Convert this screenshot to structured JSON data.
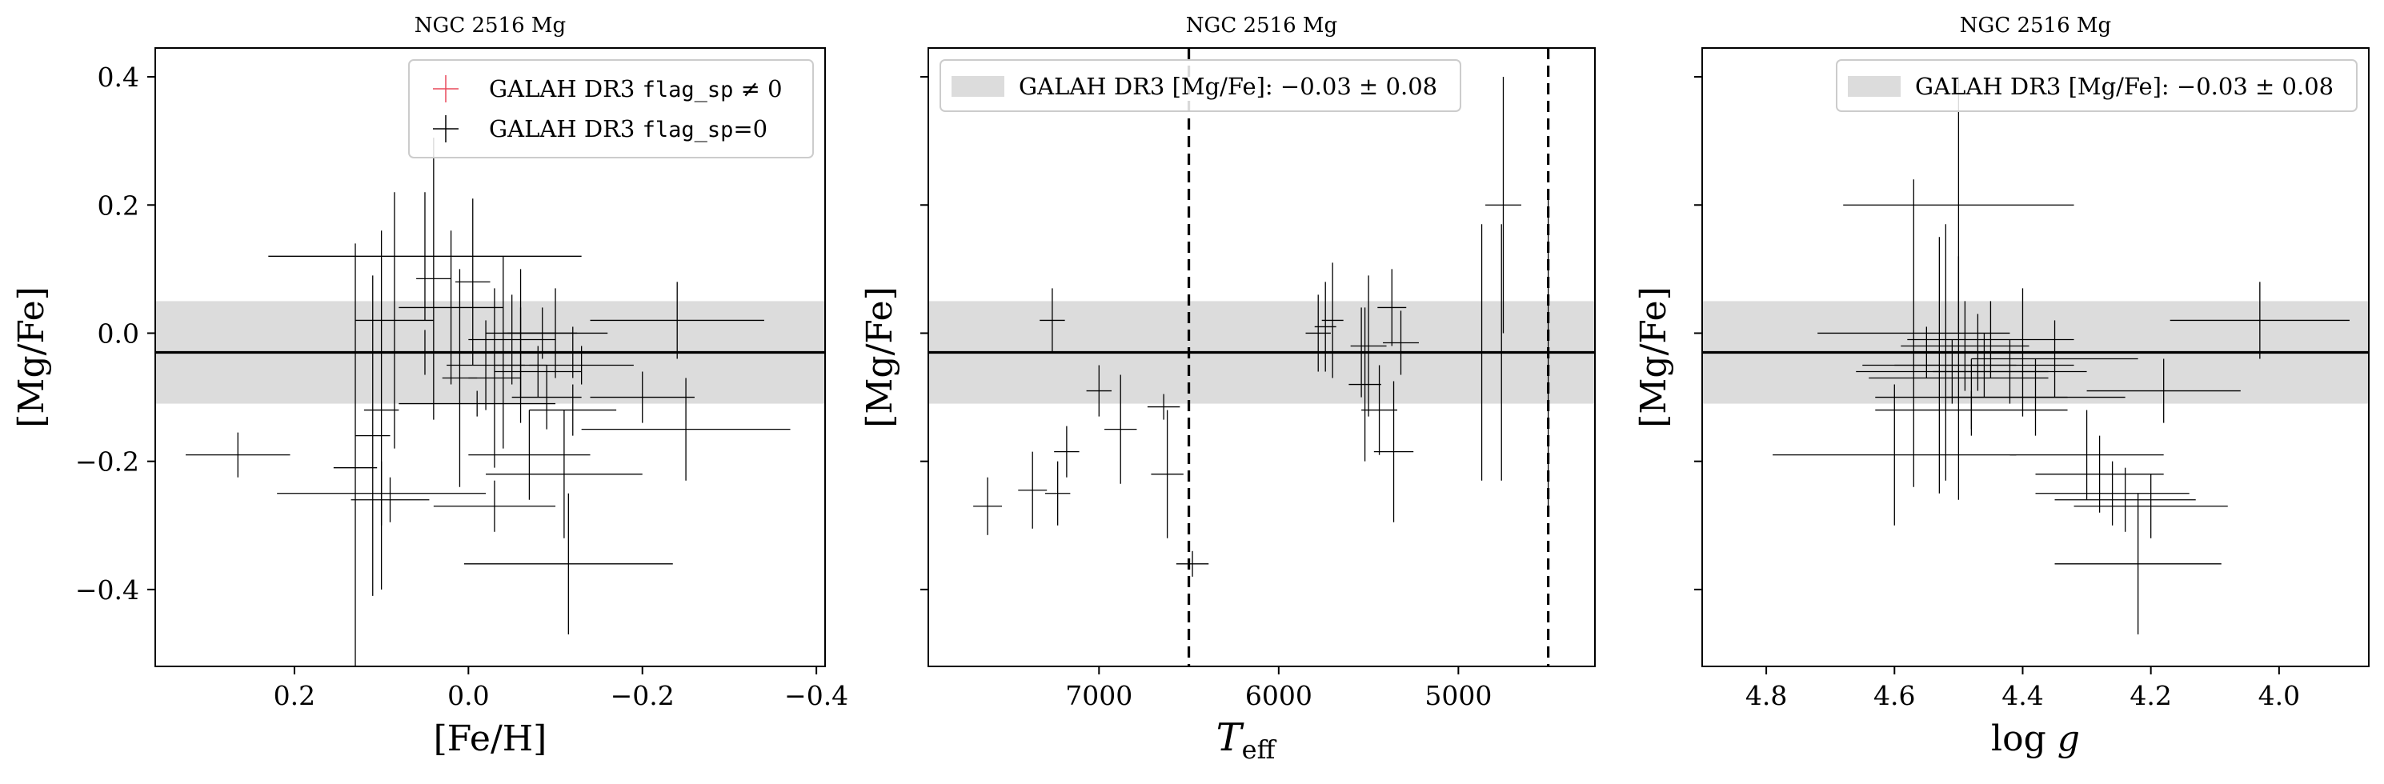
{
  "figure": {
    "shared_ylabel": "[Mg/Fe]",
    "band_color": "#dcdcdc",
    "line_color": "#000000",
    "errorbar_color": "#000000",
    "flag_color": "#e8495a"
  },
  "chart_data": [
    {
      "type": "scatter",
      "title": "NGC 2516 Mg",
      "xlabel": "[Fe/H]",
      "ylabel": "[Mg/Fe]",
      "xlim": [
        0.36,
        -0.41
      ],
      "ylim": [
        -0.52,
        0.445
      ],
      "xticks": [
        {
          "v": 0.2,
          "label": "0.2"
        },
        {
          "v": 0.0,
          "label": "0.0"
        },
        {
          "v": -0.2,
          "label": "−0.2"
        },
        {
          "v": -0.4,
          "label": "−0.4"
        }
      ],
      "yticks": [
        {
          "v": 0.4,
          "label": "0.4"
        },
        {
          "v": 0.2,
          "label": "0.2"
        },
        {
          "v": 0.0,
          "label": "0.0"
        },
        {
          "v": -0.2,
          "label": "−0.2"
        },
        {
          "v": -0.4,
          "label": "−0.4"
        }
      ],
      "show_ytick_labels": true,
      "band": [
        -0.11,
        0.05
      ],
      "hline": -0.03,
      "vlines": [],
      "legend": {
        "placement": "top-right",
        "entries": [
          {
            "marker": "cross-red",
            "prefix": "GALAH DR3 ",
            "mono": "flag_sp",
            "suffix": " ≠ 0"
          },
          {
            "marker": "cross-black",
            "prefix": "GALAH DR3 ",
            "mono": "flag_sp",
            "suffix": "=0"
          }
        ]
      },
      "series": [
        {
          "name": "GALAH DR3 flag_sp=0",
          "points": [
            {
              "x": 0.265,
              "y": -0.19,
              "xerr": 0.06,
              "yerr": 0.035
            },
            {
              "x": 0.1,
              "y": -0.25,
              "xerr": 0.12,
              "yerr": 0.05
            },
            {
              "x": 0.13,
              "y": -0.21,
              "xerr": 0.025,
              "yerr": 0.35
            },
            {
              "x": 0.09,
              "y": -0.26,
              "xerr": 0.045,
              "yerr": 0.035
            },
            {
              "x": 0.11,
              "y": -0.16,
              "xerr": 0.02,
              "yerr": 0.25
            },
            {
              "x": 0.1,
              "y": -0.12,
              "xerr": 0.02,
              "yerr": 0.28
            },
            {
              "x": 0.085,
              "y": 0.02,
              "xerr": 0.045,
              "yerr": 0.2
            },
            {
              "x": 0.05,
              "y": 0.12,
              "xerr": 0.18,
              "yerr": 0.1
            },
            {
              "x": 0.05,
              "y": -0.03,
              "xerr": 0.24,
              "yerr": 0.035
            },
            {
              "x": 0.04,
              "y": 0.085,
              "xerr": 0.02,
              "yerr": 0.22
            },
            {
              "x": 0.02,
              "y": 0.04,
              "xerr": 0.06,
              "yerr": 0.12
            },
            {
              "x": 0.01,
              "y": -0.07,
              "xerr": 0.02,
              "yerr": 0.17
            },
            {
              "x": -0.005,
              "y": 0.08,
              "xerr": 0.02,
              "yerr": 0.13
            },
            {
              "x": -0.01,
              "y": -0.11,
              "xerr": 0.09,
              "yerr": 0.02
            },
            {
              "x": -0.02,
              "y": -0.05,
              "xerr": 0.045,
              "yerr": 0.07
            },
            {
              "x": -0.03,
              "y": -0.07,
              "xerr": 0.03,
              "yerr": 0.14
            },
            {
              "x": -0.03,
              "y": -0.27,
              "xerr": 0.07,
              "yerr": 0.04
            },
            {
              "x": -0.04,
              "y": -0.03,
              "xerr": 0.02,
              "yerr": 0.15
            },
            {
              "x": -0.05,
              "y": -0.01,
              "xerr": 0.05,
              "yerr": 0.07
            },
            {
              "x": -0.06,
              "y": 0.0,
              "xerr": 0.04,
              "yerr": 0.1
            },
            {
              "x": -0.06,
              "y": -0.05,
              "xerr": 0.03,
              "yerr": 0.09
            },
            {
              "x": -0.07,
              "y": -0.19,
              "xerr": 0.07,
              "yerr": 0.07
            },
            {
              "x": -0.08,
              "y": -0.06,
              "xerr": 0.05,
              "yerr": 0.04
            },
            {
              "x": -0.085,
              "y": 0.0,
              "xerr": 0.04,
              "yerr": 0.04
            },
            {
              "x": -0.09,
              "y": -0.1,
              "xerr": 0.04,
              "yerr": 0.05
            },
            {
              "x": -0.1,
              "y": 0.0,
              "xerr": 0.06,
              "yerr": 0.07
            },
            {
              "x": -0.11,
              "y": -0.22,
              "xerr": 0.09,
              "yerr": 0.1
            },
            {
              "x": -0.115,
              "y": -0.36,
              "xerr": 0.12,
              "yerr": 0.11
            },
            {
              "x": -0.12,
              "y": -0.03,
              "xerr": 0.1,
              "yerr": 0.04
            },
            {
              "x": -0.12,
              "y": -0.12,
              "xerr": 0.05,
              "yerr": 0.04
            },
            {
              "x": -0.13,
              "y": -0.05,
              "xerr": 0.06,
              "yerr": 0.03
            },
            {
              "x": -0.2,
              "y": -0.1,
              "xerr": 0.06,
              "yerr": 0.04
            },
            {
              "x": -0.24,
              "y": 0.02,
              "xerr": 0.1,
              "yerr": 0.06
            },
            {
              "x": -0.25,
              "y": -0.15,
              "xerr": 0.12,
              "yerr": 0.08
            }
          ]
        }
      ]
    },
    {
      "type": "scatter",
      "title": "NGC 2516 Mg",
      "xlabel": "T_eff",
      "ylabel": "[Mg/Fe]",
      "xlim": [
        7950,
        4240
      ],
      "ylim": [
        -0.52,
        0.445
      ],
      "xticks": [
        {
          "v": 7000,
          "label": "7000"
        },
        {
          "v": 6000,
          "label": "6000"
        },
        {
          "v": 5000,
          "label": "5000"
        }
      ],
      "yticks": [
        {
          "v": 0.4,
          "label": "0.4"
        },
        {
          "v": 0.2,
          "label": "0.2"
        },
        {
          "v": 0.0,
          "label": "0.0"
        },
        {
          "v": -0.2,
          "label": "−0.2"
        },
        {
          "v": -0.4,
          "label": "−0.4"
        }
      ],
      "show_ytick_labels": false,
      "band": [
        -0.11,
        0.05
      ],
      "hline": -0.03,
      "vlines": [
        6500,
        4500
      ],
      "legend": {
        "placement": "top-left",
        "entries": [
          {
            "marker": "band",
            "text": "GALAH DR3 [Mg/Fe]: −0.03 ± 0.08"
          }
        ]
      },
      "series": [
        {
          "name": "",
          "points": [
            {
              "x": 7620,
              "y": -0.27,
              "xerr": 80,
              "yerr": 0.045
            },
            {
              "x": 7370,
              "y": -0.245,
              "xerr": 80,
              "yerr": 0.06
            },
            {
              "x": 7260,
              "y": 0.02,
              "xerr": 70,
              "yerr": 0.05
            },
            {
              "x": 7230,
              "y": -0.25,
              "xerr": 70,
              "yerr": 0.05
            },
            {
              "x": 7180,
              "y": -0.185,
              "xerr": 70,
              "yerr": 0.04
            },
            {
              "x": 7000,
              "y": -0.09,
              "xerr": 70,
              "yerr": 0.04
            },
            {
              "x": 6880,
              "y": -0.15,
              "xerr": 90,
              "yerr": 0.085
            },
            {
              "x": 6640,
              "y": -0.115,
              "xerr": 90,
              "yerr": 0.02
            },
            {
              "x": 6620,
              "y": -0.22,
              "xerr": 90,
              "yerr": 0.1
            },
            {
              "x": 6480,
              "y": -0.36,
              "xerr": 90,
              "yerr": 0.02
            },
            {
              "x": 5780,
              "y": 0.0,
              "xerr": 70,
              "yerr": 0.06
            },
            {
              "x": 5740,
              "y": 0.01,
              "xerr": 60,
              "yerr": 0.07
            },
            {
              "x": 5700,
              "y": 0.02,
              "xerr": 60,
              "yerr": 0.09
            },
            {
              "x": 5540,
              "y": -0.03,
              "xerr": 80,
              "yerr": 0.07
            },
            {
              "x": 5520,
              "y": -0.08,
              "xerr": 90,
              "yerr": 0.12
            },
            {
              "x": 5500,
              "y": -0.02,
              "xerr": 100,
              "yerr": 0.11
            },
            {
              "x": 5440,
              "y": -0.12,
              "xerr": 100,
              "yerr": 0.07
            },
            {
              "x": 5370,
              "y": 0.04,
              "xerr": 80,
              "yerr": 0.06
            },
            {
              "x": 5360,
              "y": -0.185,
              "xerr": 110,
              "yerr": 0.11
            },
            {
              "x": 5320,
              "y": -0.015,
              "xerr": 100,
              "yerr": 0.05
            },
            {
              "x": 4870,
              "y": -0.03,
              "xerr": 100,
              "yerr": 0.2
            },
            {
              "x": 4760,
              "y": -0.03,
              "xerr": 200,
              "yerr": 0.2
            },
            {
              "x": 4750,
              "y": 0.2,
              "xerr": 100,
              "yerr": 0.2
            },
            {
              "x": 4500,
              "y": -0.03,
              "xerr": 60,
              "yerr": 0.24
            }
          ]
        }
      ]
    },
    {
      "type": "scatter",
      "title": "NGC 2516 Mg",
      "xlabel": "log g",
      "ylabel": "[Mg/Fe]",
      "xlim": [
        4.9,
        3.86
      ],
      "ylim": [
        -0.52,
        0.445
      ],
      "xticks": [
        {
          "v": 4.8,
          "label": "4.8"
        },
        {
          "v": 4.6,
          "label": "4.6"
        },
        {
          "v": 4.4,
          "label": "4.4"
        },
        {
          "v": 4.2,
          "label": "4.2"
        },
        {
          "v": 4.0,
          "label": "4.0"
        }
      ],
      "yticks": [
        {
          "v": 0.4,
          "label": "0.4"
        },
        {
          "v": 0.2,
          "label": "0.2"
        },
        {
          "v": 0.0,
          "label": "0.0"
        },
        {
          "v": -0.2,
          "label": "−0.2"
        },
        {
          "v": -0.4,
          "label": "−0.4"
        }
      ],
      "show_ytick_labels": false,
      "band": [
        -0.11,
        0.05
      ],
      "hline": -0.03,
      "vlines": [],
      "legend": {
        "placement": "top-right",
        "entries": [
          {
            "marker": "band",
            "text": "GALAH DR3 [Mg/Fe]: −0.03 ± 0.08"
          }
        ]
      },
      "series": [
        {
          "name": "",
          "points": [
            {
              "x": 4.6,
              "y": -0.19,
              "xerr": 0.19,
              "yerr": 0.11
            },
            {
              "x": 4.57,
              "y": 0.0,
              "xerr": 0.15,
              "yerr": 0.24
            },
            {
              "x": 4.55,
              "y": -0.03,
              "xerr": 0.2,
              "yerr": 0.04
            },
            {
              "x": 4.53,
              "y": -0.05,
              "xerr": 0.12,
              "yerr": 0.2
            },
            {
              "x": 4.52,
              "y": -0.03,
              "xerr": 0.15,
              "yerr": 0.2
            },
            {
              "x": 4.51,
              "y": -0.06,
              "xerr": 0.15,
              "yerr": 0.05
            },
            {
              "x": 4.5,
              "y": 0.2,
              "xerr": 0.18,
              "yerr": 0.2
            },
            {
              "x": 4.5,
              "y": -0.07,
              "xerr": 0.14,
              "yerr": 0.19
            },
            {
              "x": 4.49,
              "y": -0.02,
              "xerr": 0.1,
              "yerr": 0.07
            },
            {
              "x": 4.48,
              "y": -0.1,
              "xerr": 0.15,
              "yerr": 0.06
            },
            {
              "x": 4.48,
              "y": -0.12,
              "xerr": 0.15,
              "yerr": 0.03
            },
            {
              "x": 4.47,
              "y": -0.03,
              "xerr": 0.15,
              "yerr": 0.06
            },
            {
              "x": 4.46,
              "y": -0.05,
              "xerr": 0.14,
              "yerr": 0.05
            },
            {
              "x": 4.45,
              "y": -0.01,
              "xerr": 0.13,
              "yerr": 0.06
            },
            {
              "x": 4.42,
              "y": -0.06,
              "xerr": 0.12,
              "yerr": 0.05
            },
            {
              "x": 4.4,
              "y": -0.03,
              "xerr": 0.12,
              "yerr": 0.1
            },
            {
              "x": 4.38,
              "y": -0.1,
              "xerr": 0.14,
              "yerr": 0.06
            },
            {
              "x": 4.35,
              "y": -0.04,
              "xerr": 0.13,
              "yerr": 0.06
            },
            {
              "x": 4.3,
              "y": -0.19,
              "xerr": 0.12,
              "yerr": 0.07
            },
            {
              "x": 4.28,
              "y": -0.22,
              "xerr": 0.1,
              "yerr": 0.06
            },
            {
              "x": 4.26,
              "y": -0.25,
              "xerr": 0.12,
              "yerr": 0.05
            },
            {
              "x": 4.24,
              "y": -0.26,
              "xerr": 0.11,
              "yerr": 0.05
            },
            {
              "x": 4.22,
              "y": -0.36,
              "xerr": 0.13,
              "yerr": 0.11
            },
            {
              "x": 4.2,
              "y": -0.27,
              "xerr": 0.12,
              "yerr": 0.05
            },
            {
              "x": 4.18,
              "y": -0.09,
              "xerr": 0.12,
              "yerr": 0.05
            },
            {
              "x": 4.03,
              "y": 0.02,
              "xerr": 0.14,
              "yerr": 0.06
            }
          ]
        }
      ]
    }
  ]
}
